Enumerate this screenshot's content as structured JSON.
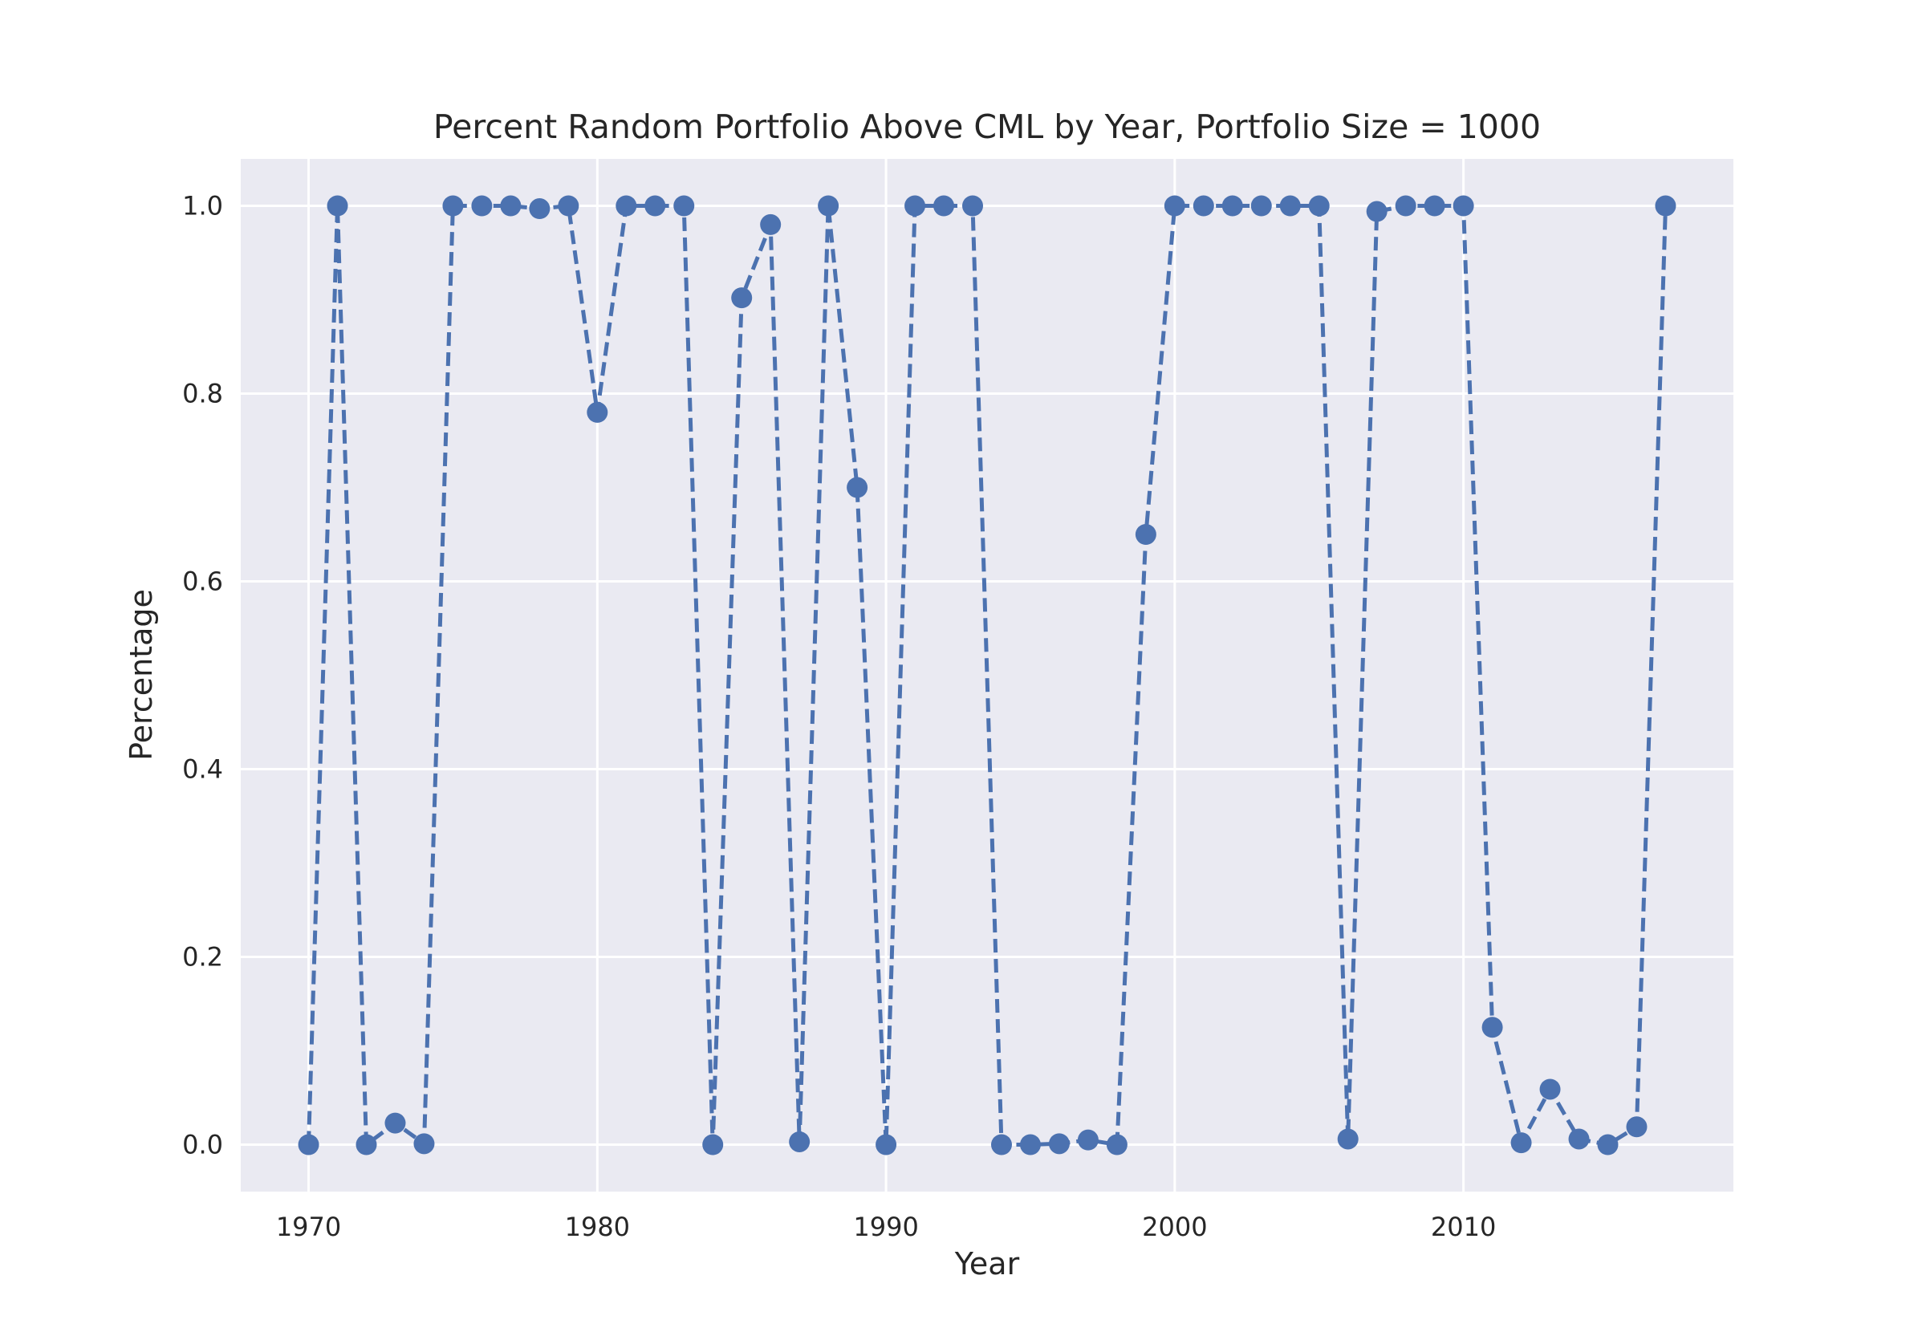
{
  "chart_data": {
    "type": "line",
    "title": "Percent Random Portfolio Above CML by Year, Portfolio Size = 1000",
    "xlabel": "Year",
    "ylabel": "Percentage",
    "xlim": [
      1967.65,
      2019.35
    ],
    "ylim": [
      -0.05,
      1.05
    ],
    "x_ticks": [
      1970,
      1980,
      1990,
      2000,
      2010
    ],
    "y_ticks": [
      0.0,
      0.2,
      0.4,
      0.6,
      0.8,
      1.0
    ],
    "x_tick_labels": [
      "1970",
      "1980",
      "1990",
      "2000",
      "2010"
    ],
    "y_tick_labels": [
      "0.0",
      "0.2",
      "0.4",
      "0.6",
      "0.8",
      "1.0"
    ],
    "grid": true,
    "line_style": "dashed",
    "marker": "circle",
    "colors": {
      "series": "#4c72b0",
      "plot_background": "#eaeaf2",
      "grid": "#ffffff",
      "text": "#262626"
    },
    "series": [
      {
        "x": [
          1970,
          1971,
          1972,
          1973,
          1974,
          1975,
          1976,
          1977,
          1978,
          1979,
          1980,
          1981,
          1982,
          1983,
          1984,
          1985,
          1986,
          1987,
          1988,
          1989,
          1990,
          1991,
          1992,
          1993,
          1994,
          1995,
          1996,
          1997,
          1998,
          1999,
          2000,
          2001,
          2002,
          2003,
          2004,
          2005,
          2006,
          2007,
          2008,
          2009,
          2010,
          2011,
          2012,
          2013,
          2014,
          2015,
          2016,
          2017
        ],
        "y": [
          0.0,
          1.0,
          0.0,
          0.023,
          0.001,
          1.0,
          1.0,
          1.0,
          0.997,
          1.0,
          0.78,
          1.0,
          1.0,
          1.0,
          0.0,
          0.902,
          0.98,
          0.003,
          1.0,
          0.7,
          0.0,
          1.0,
          1.0,
          1.0,
          0.0,
          0.0,
          0.001,
          0.005,
          0.0,
          0.65,
          1.0,
          1.0,
          1.0,
          1.0,
          1.0,
          1.0,
          0.006,
          0.994,
          1.0,
          1.0,
          1.0,
          0.125,
          0.002,
          0.059,
          0.006,
          0.0,
          0.019,
          1.0
        ]
      }
    ]
  }
}
